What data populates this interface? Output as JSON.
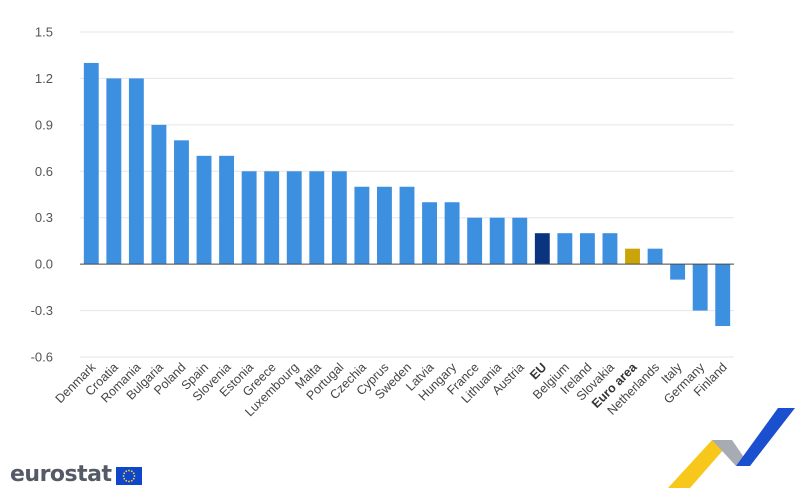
{
  "brand": {
    "name": "eurostat"
  },
  "colors": {
    "country": "#3d8fe0",
    "eu": "#0b3480",
    "euro_area": "#caa50a",
    "grid": "#e6e6e6",
    "axis": "#4a4a4a"
  },
  "chart_data": {
    "type": "bar",
    "title": "",
    "xlabel": "",
    "ylabel": "",
    "ylim": [
      -0.6,
      1.5
    ],
    "yticks": [
      "1.5",
      "1.2",
      "0.9",
      "0.6",
      "0.3",
      "0.0",
      "-0.3",
      "-0.6"
    ],
    "ytick_values": [
      1.5,
      1.2,
      0.9,
      0.6,
      0.3,
      0.0,
      -0.3,
      -0.6
    ],
    "grid": true,
    "legend": "none",
    "categories": [
      "Denmark",
      "Croatia",
      "Romania",
      "Bulgaria",
      "Poland",
      "Spain",
      "Slovenia",
      "Estonia",
      "Greece",
      "Luxembourg",
      "Malta",
      "Portugal",
      "Czechia",
      "Cyprus",
      "Sweden",
      "Latvia",
      "Hungary",
      "France",
      "Lithuania",
      "Austria",
      "EU",
      "Belgium",
      "Ireland",
      "Slovakia",
      "Euro area",
      "Netherlands",
      "Italy",
      "Germany",
      "Finland"
    ],
    "values": [
      1.3,
      1.2,
      1.2,
      0.9,
      0.8,
      0.7,
      0.7,
      0.6,
      0.6,
      0.6,
      0.6,
      0.6,
      0.5,
      0.5,
      0.5,
      0.4,
      0.4,
      0.3,
      0.3,
      0.3,
      0.2,
      0.2,
      0.2,
      0.2,
      0.1,
      0.1,
      -0.1,
      -0.3,
      -0.4
    ],
    "highlight": {
      "EU": "eu",
      "Euro area": "euro_area"
    }
  }
}
